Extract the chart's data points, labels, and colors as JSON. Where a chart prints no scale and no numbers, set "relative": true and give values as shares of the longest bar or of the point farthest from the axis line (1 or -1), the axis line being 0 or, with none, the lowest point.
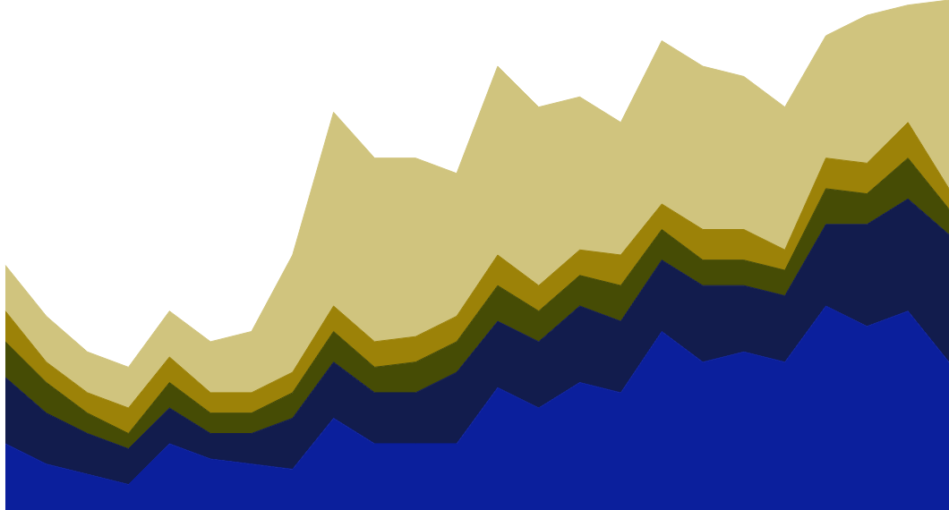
{
  "chart_data": {
    "type": "area",
    "relative": true,
    "stacked": true,
    "categories": [
      null,
      null,
      null,
      null,
      null,
      null,
      null,
      null,
      null,
      null,
      null,
      null,
      null,
      null,
      null,
      null,
      null,
      null,
      null,
      null,
      null,
      null,
      null,
      null
    ],
    "series": [
      {
        "color": "#0b1f9c",
        "values": [
          0.13,
          0.09,
          0.07,
          0.05,
          0.13,
          0.1,
          0.09,
          0.08,
          0.18,
          0.13,
          0.13,
          0.13,
          0.24,
          0.2,
          0.25,
          0.23,
          0.35,
          0.29,
          0.31,
          0.29,
          0.4,
          0.36,
          0.39,
          0.29
        ]
      },
      {
        "color": "#121c4d",
        "values": [
          0.13,
          0.1,
          0.08,
          0.07,
          0.07,
          0.05,
          0.06,
          0.1,
          0.11,
          0.1,
          0.1,
          0.14,
          0.13,
          0.13,
          0.15,
          0.14,
          0.14,
          0.15,
          0.13,
          0.13,
          0.16,
          0.2,
          0.22,
          0.25
        ]
      },
      {
        "color": "#464c05",
        "values": [
          0.07,
          0.06,
          0.04,
          0.03,
          0.05,
          0.04,
          0.04,
          0.05,
          0.06,
          0.05,
          0.06,
          0.06,
          0.07,
          0.06,
          0.06,
          0.07,
          0.06,
          0.05,
          0.05,
          0.05,
          0.07,
          0.06,
          0.08,
          0.05
        ]
      },
      {
        "color": "#9c8208",
        "values": [
          0.06,
          0.04,
          0.04,
          0.05,
          0.05,
          0.04,
          0.04,
          0.04,
          0.05,
          0.05,
          0.05,
          0.05,
          0.06,
          0.05,
          0.05,
          0.06,
          0.05,
          0.06,
          0.06,
          0.04,
          0.06,
          0.06,
          0.07,
          0.04
        ]
      },
      {
        "color": "#d0c47e",
        "values": [
          0.09,
          0.09,
          0.08,
          0.08,
          0.09,
          0.1,
          0.12,
          0.23,
          0.38,
          0.36,
          0.35,
          0.28,
          0.37,
          0.35,
          0.3,
          0.26,
          0.32,
          0.32,
          0.3,
          0.28,
          0.24,
          0.29,
          0.23,
          0.37
        ]
      }
    ]
  }
}
